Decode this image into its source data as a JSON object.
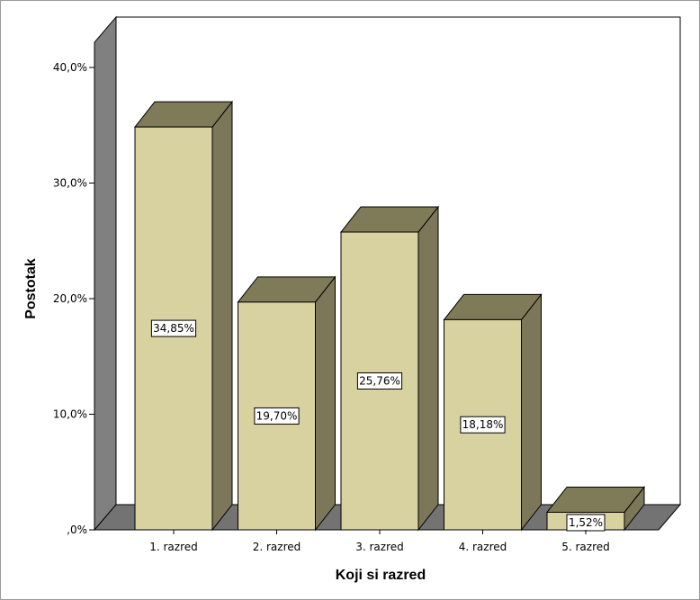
{
  "chart_data": {
    "type": "bar",
    "categories": [
      "1. razred",
      "2. razred",
      "3. razred",
      "4. razred",
      "5. razred"
    ],
    "values": [
      34.85,
      19.7,
      25.76,
      18.18,
      1.52
    ],
    "data_labels": [
      "34,85%",
      "19,70%",
      "25,76%",
      "18,18%",
      "1,52%"
    ],
    "xlabel": "Koji si razred",
    "ylabel": "Postotak",
    "ylim": [
      0,
      40
    ],
    "y_ticks": [
      0,
      10,
      20,
      30,
      40
    ],
    "y_tick_labels": [
      ",0%",
      "10,0%",
      "20,0%",
      "30,0%",
      "40,0%"
    ],
    "style": "3d",
    "grid": false,
    "colors": {
      "bar_front": "#d8d2a1",
      "bar_side": "#7b7758",
      "bar_top": "#7f7a58",
      "wall": "#808080",
      "floor": "#737373",
      "outline": "#000000"
    }
  }
}
